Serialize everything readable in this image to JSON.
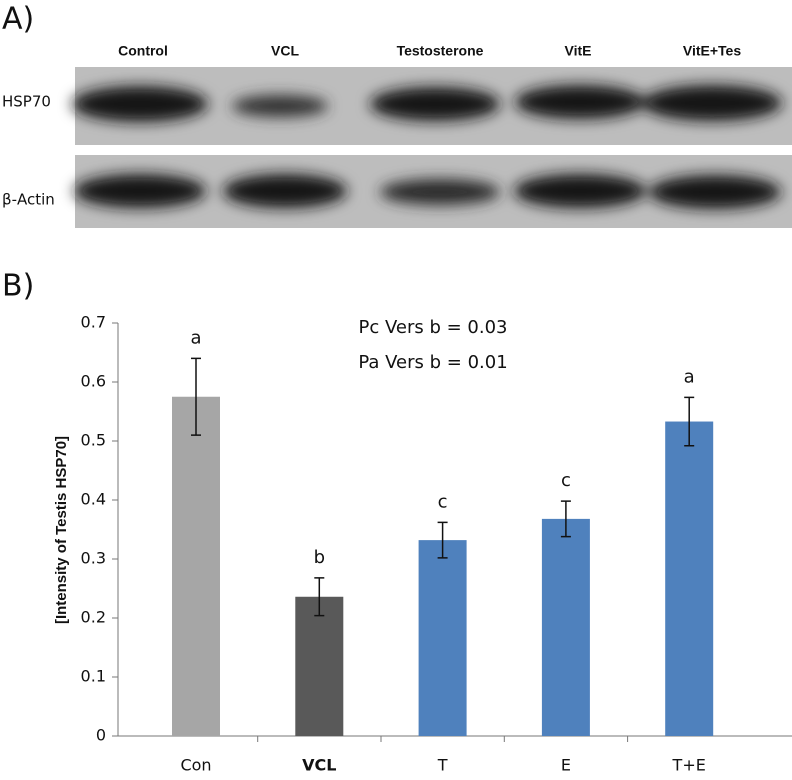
{
  "panel_a": {
    "label": "A)",
    "lanes": [
      "Control",
      "VCL",
      "Testosterone",
      "VitE",
      "VitE+Tes"
    ],
    "rows": [
      "HSP70",
      "β-Actin"
    ]
  },
  "chart_data": {
    "type": "bar",
    "panel_label": "B)",
    "y_label": "[Intensity of Testis HSP70]",
    "annotations": [
      "Pc Vers b = 0.03",
      "Pa Vers b = 0.01"
    ],
    "categories": [
      "Con",
      "VCL",
      "T",
      "E",
      "T+E"
    ],
    "values": [
      0.575,
      0.236,
      0.332,
      0.368,
      0.533
    ],
    "errors": [
      0.065,
      0.032,
      0.03,
      0.03,
      0.041
    ],
    "letters": [
      "a",
      "b",
      "c",
      "c",
      "a"
    ],
    "colors": [
      "#a6a6a6",
      "#595959",
      "#4f81bd",
      "#4f81bd",
      "#4f81bd"
    ],
    "ylim": [
      0,
      0.7
    ],
    "yticks": [
      0,
      0.1,
      0.2,
      0.3,
      0.4,
      0.5,
      0.6,
      0.7
    ]
  }
}
